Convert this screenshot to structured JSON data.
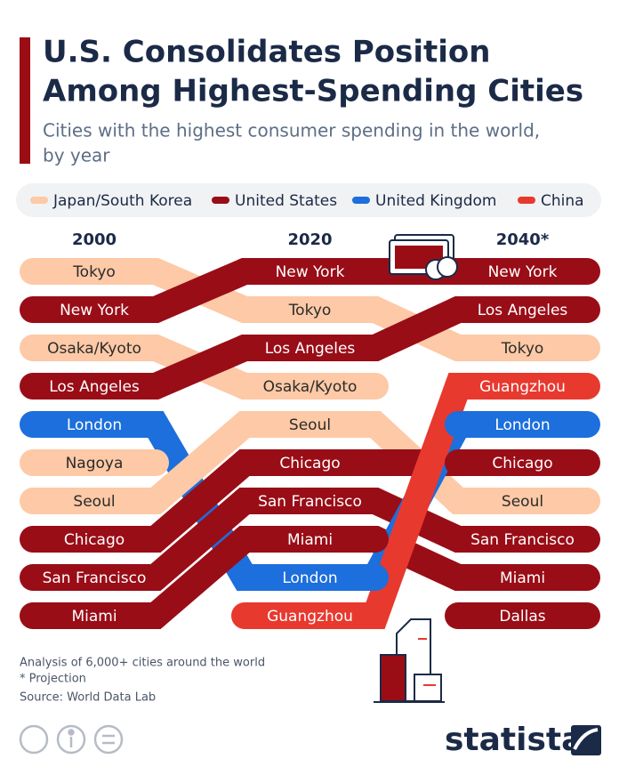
{
  "header": {
    "title_lines": [
      "U.S. Consolidates Position",
      "Among Highest-Spending Cities"
    ],
    "subtitle_lines": [
      "Cities with the highest consumer spending in the world,",
      "by year"
    ]
  },
  "legend": [
    {
      "name": "Japan/South Korea",
      "color": "#fdc9a6"
    },
    {
      "name": "United States",
      "color": "#990d17"
    },
    {
      "name": "United Kingdom",
      "color": "#1c6fdc"
    },
    {
      "name": "China",
      "color": "#e8392f"
    }
  ],
  "columns": [
    {
      "year": "2000",
      "cities": [
        {
          "name": "Tokyo",
          "region": "Japan/South Korea"
        },
        {
          "name": "New York",
          "region": "United States"
        },
        {
          "name": "Osaka/Kyoto",
          "region": "Japan/South Korea"
        },
        {
          "name": "Los Angeles",
          "region": "United States"
        },
        {
          "name": "London",
          "region": "United Kingdom"
        },
        {
          "name": "Nagoya",
          "region": "Japan/South Korea"
        },
        {
          "name": "Seoul",
          "region": "Japan/South Korea"
        },
        {
          "name": "Chicago",
          "region": "United States"
        },
        {
          "name": "San Francisco",
          "region": "United States"
        },
        {
          "name": "Miami",
          "region": "United States"
        }
      ]
    },
    {
      "year": "2020",
      "cities": [
        {
          "name": "New York",
          "region": "United States"
        },
        {
          "name": "Tokyo",
          "region": "Japan/South Korea"
        },
        {
          "name": "Los Angeles",
          "region": "United States"
        },
        {
          "name": "Osaka/Kyoto",
          "region": "Japan/South Korea"
        },
        {
          "name": "Seoul",
          "region": "Japan/South Korea"
        },
        {
          "name": "Chicago",
          "region": "United States"
        },
        {
          "name": "San Francisco",
          "region": "United States"
        },
        {
          "name": "Miami",
          "region": "United States"
        },
        {
          "name": "London",
          "region": "United Kingdom"
        },
        {
          "name": "Guangzhou",
          "region": "China"
        }
      ]
    },
    {
      "year": "2040*",
      "cities": [
        {
          "name": "New York",
          "region": "United States"
        },
        {
          "name": "Los Angeles",
          "region": "United States"
        },
        {
          "name": "Tokyo",
          "region": "Japan/South Korea"
        },
        {
          "name": "Guangzhou",
          "region": "China"
        },
        {
          "name": "London",
          "region": "United Kingdom"
        },
        {
          "name": "Chicago",
          "region": "United States"
        },
        {
          "name": "Seoul",
          "region": "Japan/South Korea"
        },
        {
          "name": "San Francisco",
          "region": "United States"
        },
        {
          "name": "Miami",
          "region": "United States"
        },
        {
          "name": "Dallas",
          "region": "United States"
        }
      ]
    }
  ],
  "footer": {
    "notes": [
      "Analysis of 6,000+ cities around the world",
      "* Projection",
      "Source: World Data Lab"
    ],
    "brand": "statista"
  }
}
